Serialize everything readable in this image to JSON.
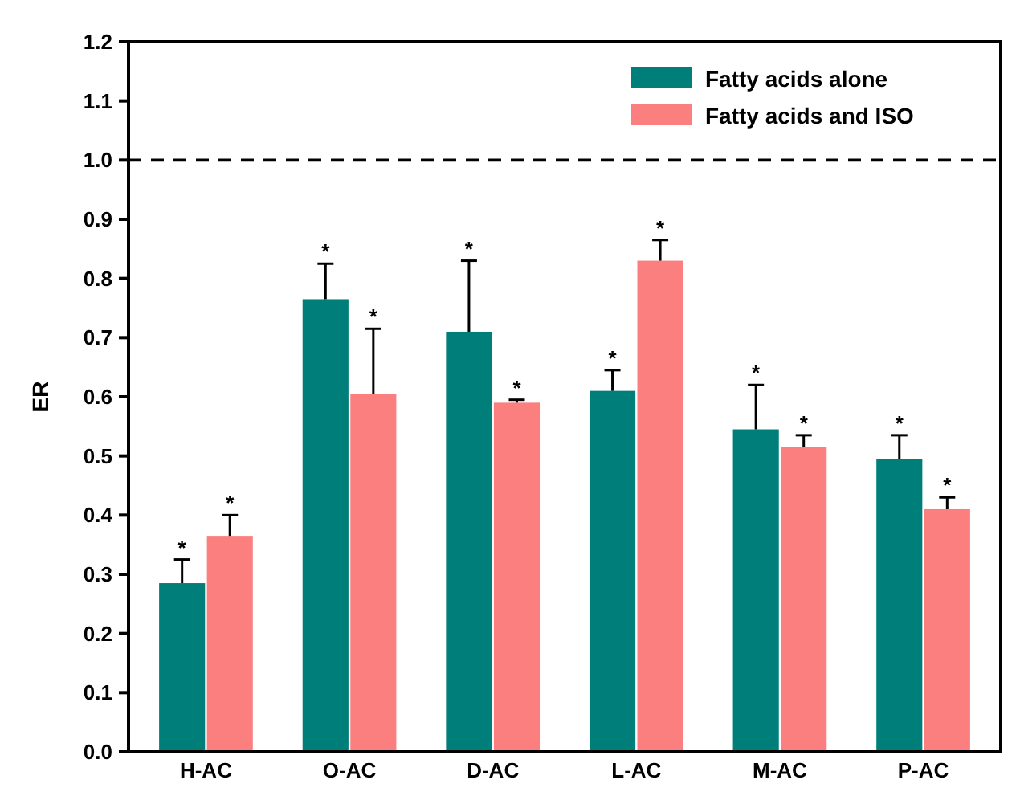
{
  "chart_data": {
    "type": "bar",
    "ylabel": "ER",
    "categories": [
      "H-AC",
      "O-AC",
      "D-AC",
      "L-AC",
      "M-AC",
      "P-AC"
    ],
    "series": [
      {
        "name": "Fatty acids alone",
        "color": "#007f7a",
        "values": [
          0.285,
          0.765,
          0.71,
          0.61,
          0.545,
          0.495
        ],
        "errors": [
          [
            0.285,
            0.325
          ],
          [
            0.765,
            0.825
          ],
          [
            0.71,
            0.83
          ],
          [
            0.61,
            0.645
          ],
          [
            0.545,
            0.62
          ],
          [
            0.495,
            0.535
          ]
        ]
      },
      {
        "name": "Fatty acids and ISO",
        "color": "#fb7f7f",
        "values": [
          0.365,
          0.605,
          0.59,
          0.83,
          0.515,
          0.41
        ],
        "errors": [
          [
            0.365,
            0.4
          ],
          [
            0.605,
            0.715
          ],
          [
            0.59,
            0.595
          ],
          [
            0.83,
            0.865
          ],
          [
            0.515,
            0.535
          ],
          [
            0.41,
            0.43
          ]
        ]
      }
    ],
    "ylim": [
      0,
      1.2
    ],
    "yticks": [
      {
        "value": 0,
        "label": "0.0"
      },
      0.1,
      0.2,
      0.3,
      0.4,
      0.5,
      0.6,
      0.7,
      0.8,
      0.9,
      {
        "value": 1,
        "label": "1.0"
      },
      1.1,
      1.2
    ],
    "ref_lines": [
      {
        "axis": "y",
        "value": 1,
        "color": "#000000",
        "line_style": "dashed"
      }
    ],
    "annotations": [
      "*",
      "*",
      "*",
      "*",
      "*",
      "*",
      "*",
      "*",
      "*",
      "*",
      "*",
      "*"
    ],
    "legend": "top right",
    "grid": false
  }
}
